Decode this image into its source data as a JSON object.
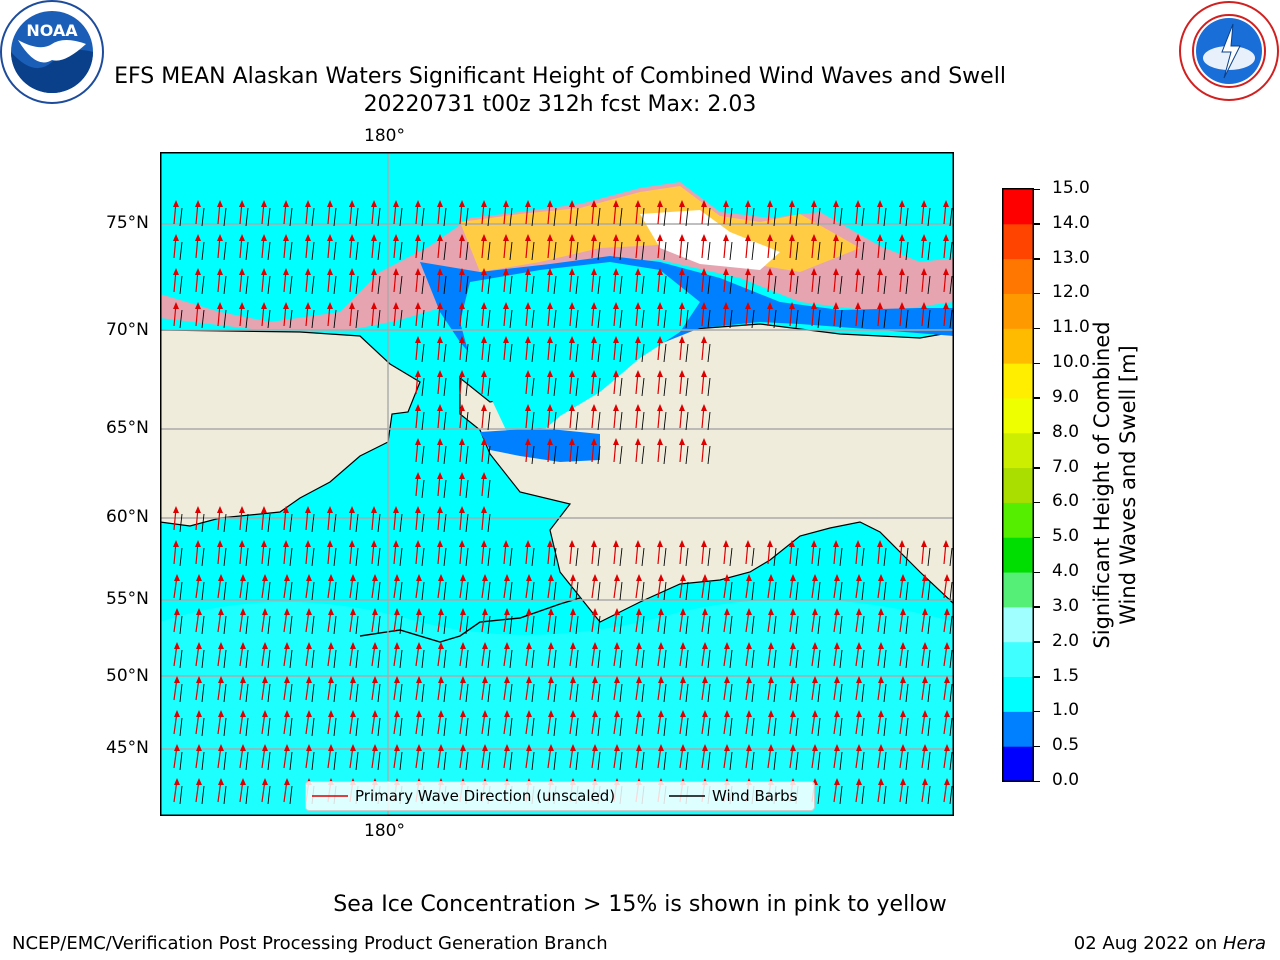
{
  "header": {
    "title": "EFS MEAN Alaskan Waters Significant Height of Combined Wind Waves and Swell",
    "subtitle": "20220731 t00z 312h fcst    Max: 2.03"
  },
  "logos": {
    "left": "NOAA",
    "right": "NATIONAL WEATHER SERVICE"
  },
  "map": {
    "top_lon_label": "180°",
    "bottom_lon_label": "180°",
    "lat_labels": [
      "75°N",
      "70°N",
      "65°N",
      "60°N",
      "55°N",
      "50°N",
      "45°N"
    ],
    "land_color": "#efecdc",
    "ocean_color": "#00ffff",
    "legend": {
      "wave_label": "Primary Wave Direction (unscaled)",
      "wind_label": "Wind Barbs"
    }
  },
  "colorbar": {
    "title_line1": "Significant Height of Combined",
    "title_line2": "Wind Waves and Swell [m]",
    "ticks": [
      "0.0",
      "0.5",
      "1.0",
      "1.5",
      "2.0",
      "3.0",
      "4.0",
      "5.0",
      "6.0",
      "7.0",
      "8.0",
      "9.0",
      "10.0",
      "11.0",
      "12.0",
      "13.0",
      "14.0",
      "15.0"
    ],
    "colors": [
      "#0000ff",
      "#0080ff",
      "#00ffff",
      "#40ffff",
      "#a0ffff",
      "#55ee77",
      "#00dd00",
      "#55ee00",
      "#aadd00",
      "#ccee00",
      "#eeff00",
      "#ffee00",
      "#ffbb00",
      "#ff9900",
      "#ff7700",
      "#ff4400",
      "#ff0000"
    ]
  },
  "footer": {
    "note": "Sea Ice Concentration > 15% is shown in pink to yellow",
    "left": "NCEP/EMC/Verification Post Processing Product Generation Branch",
    "right_date": "02 Aug 2022 on ",
    "right_host": "Hera"
  }
}
